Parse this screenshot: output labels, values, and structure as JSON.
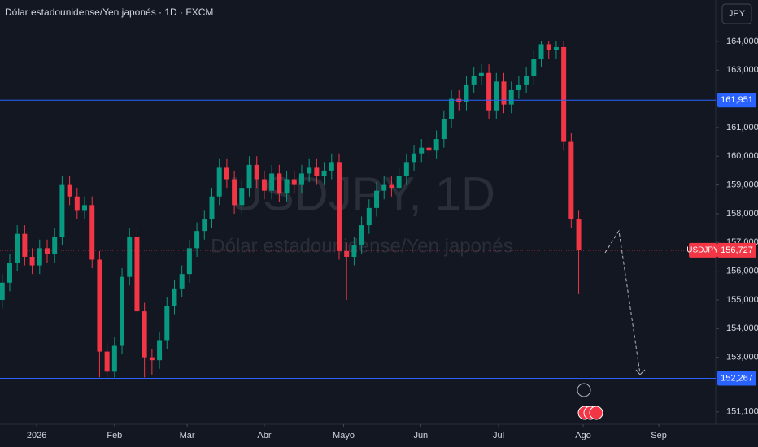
{
  "chart_data": {
    "type": "candlestick",
    "title": "Dólar estadounidense/Yen japonés · 1D · FXCM",
    "currency": "JPY",
    "watermark": "USDJPY, 1D",
    "watermark_subtitle": "Dólar estadounidense/Yen japonés",
    "up_color": "#089981",
    "down_color": "#f23645",
    "grid": false,
    "open": [
      155.0,
      155.6,
      156.3,
      157.3,
      156.5,
      156.2,
      156.8,
      156.6,
      157.2,
      159.0,
      158.6,
      158.1,
      158.3,
      156.4,
      153.2,
      152.5,
      153.4,
      155.8,
      157.2,
      154.6,
      153.0,
      152.9,
      153.6,
      154.8,
      155.4,
      155.9,
      156.8,
      157.4,
      157.8,
      158.6,
      159.6,
      159.2,
      158.3,
      158.9,
      159.7,
      159.2,
      158.8,
      159.4,
      158.7,
      159.2,
      159.0,
      159.4,
      159.6,
      159.3,
      159.5,
      159.8,
      156.7,
      156.5,
      156.9,
      157.6,
      158.2,
      158.8,
      159.0,
      158.9,
      159.3,
      159.8,
      160.1,
      160.3,
      160.2,
      160.6,
      161.3,
      162.0,
      161.9,
      162.5,
      162.8,
      162.9,
      161.6,
      162.6,
      161.8,
      162.3,
      162.5,
      162.8,
      163.4,
      163.9,
      163.7,
      163.8,
      160.5,
      157.8
    ],
    "high": [
      155.9,
      156.6,
      157.6,
      157.6,
      156.8,
      157.1,
      157.1,
      157.5,
      159.3,
      159.3,
      158.9,
      158.6,
      158.6,
      156.7,
      153.5,
      153.7,
      156.1,
      157.5,
      157.5,
      154.9,
      153.3,
      153.9,
      155.1,
      155.7,
      156.2,
      157.1,
      157.7,
      158.1,
      158.9,
      159.9,
      159.9,
      159.5,
      159.2,
      160.0,
      160.0,
      159.5,
      159.7,
      159.7,
      159.5,
      159.5,
      159.7,
      159.9,
      159.9,
      159.8,
      160.1,
      160.1,
      157.0,
      157.2,
      157.9,
      158.5,
      159.1,
      159.3,
      159.3,
      159.6,
      160.1,
      160.4,
      160.6,
      160.6,
      160.9,
      161.6,
      162.3,
      162.3,
      162.8,
      163.1,
      163.2,
      163.2,
      162.9,
      162.9,
      162.6,
      162.8,
      163.1,
      163.7,
      164.0,
      164.0,
      164.0,
      164.0,
      160.8,
      158.1
    ],
    "low": [
      154.7,
      155.3,
      156.0,
      156.2,
      155.9,
      155.9,
      156.3,
      156.3,
      156.9,
      158.3,
      157.8,
      157.8,
      156.1,
      152.3,
      152.3,
      152.3,
      153.1,
      155.5,
      154.3,
      152.3,
      152.4,
      152.6,
      153.3,
      154.5,
      155.1,
      155.6,
      156.5,
      157.1,
      157.5,
      158.3,
      158.9,
      158.0,
      158.0,
      158.6,
      158.9,
      158.5,
      158.5,
      158.4,
      158.4,
      158.7,
      158.7,
      159.1,
      159.0,
      159.0,
      159.2,
      156.4,
      155.0,
      156.2,
      156.6,
      157.3,
      157.9,
      158.5,
      158.6,
      158.6,
      159.0,
      159.5,
      159.8,
      159.9,
      159.9,
      160.3,
      161.0,
      161.6,
      161.6,
      162.2,
      162.5,
      161.3,
      161.3,
      161.5,
      161.5,
      162.0,
      162.2,
      162.5,
      163.1,
      163.4,
      163.4,
      160.2,
      157.5,
      155.2
    ],
    "close": [
      155.6,
      156.3,
      157.3,
      156.5,
      156.2,
      156.8,
      156.6,
      157.2,
      159.0,
      158.6,
      158.1,
      158.3,
      156.4,
      153.2,
      152.5,
      153.4,
      155.8,
      157.2,
      154.6,
      153.0,
      152.9,
      153.6,
      154.8,
      155.4,
      155.9,
      156.8,
      157.4,
      157.8,
      158.6,
      159.6,
      159.2,
      158.3,
      158.9,
      159.7,
      159.2,
      158.8,
      159.4,
      158.7,
      159.2,
      159.0,
      159.4,
      159.6,
      159.3,
      159.5,
      159.8,
      156.7,
      156.5,
      156.9,
      157.6,
      158.2,
      158.8,
      159.0,
      158.9,
      159.3,
      159.8,
      160.1,
      160.3,
      160.2,
      160.6,
      161.3,
      162.0,
      161.9,
      162.5,
      162.8,
      162.9,
      161.6,
      162.6,
      161.8,
      162.3,
      162.5,
      162.8,
      163.4,
      163.9,
      163.7,
      163.8,
      160.5,
      157.8,
      156.727
    ],
    "xlim": [
      -0.3,
      95.3
    ],
    "xticks": [
      {
        "value": 4.6,
        "label": "2026"
      },
      {
        "value": 15,
        "label": "Feb"
      },
      {
        "value": 24.7,
        "label": "Mar"
      },
      {
        "value": 35,
        "label": "Abr"
      },
      {
        "value": 45.6,
        "label": "Mayo"
      },
      {
        "value": 55.9,
        "label": "Jun"
      },
      {
        "value": 66.3,
        "label": "Jul"
      },
      {
        "value": 77.6,
        "label": "Ago"
      },
      {
        "value": 87.7,
        "label": "Sep"
      }
    ],
    "ylim": [
      150.67,
      165.44
    ],
    "yticks": [
      {
        "value": 151.1,
        "label": "151,100"
      },
      {
        "value": 153,
        "label": "153,000"
      },
      {
        "value": 154,
        "label": "154,000"
      },
      {
        "value": 155,
        "label": "155,000"
      },
      {
        "value": 156,
        "label": "156,000"
      },
      {
        "value": 157,
        "label": "157,000"
      },
      {
        "value": 158,
        "label": "158,000"
      },
      {
        "value": 159,
        "label": "159,000"
      },
      {
        "value": 160,
        "label": "160,000"
      },
      {
        "value": 161,
        "label": "161,000"
      },
      {
        "value": 163,
        "label": "163,000"
      },
      {
        "value": 164,
        "label": "164,000"
      }
    ],
    "levels": [
      {
        "value": 161.951,
        "label": "161,951",
        "color": "#2962ff"
      },
      {
        "value": 152.267,
        "label": "152,267",
        "color": "#2962ff"
      }
    ],
    "last_price": {
      "value": 156.727,
      "label": "156,727",
      "symbol": "USDJPY",
      "color": "#f23645"
    }
  }
}
